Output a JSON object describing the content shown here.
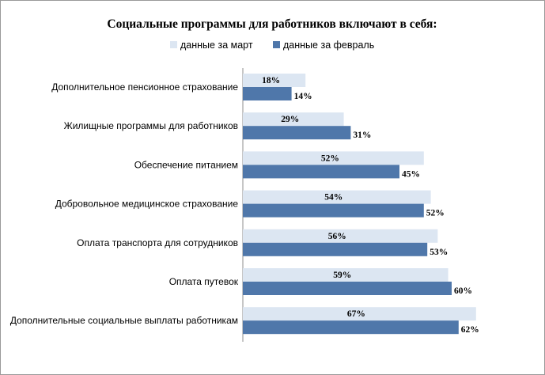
{
  "chart_data": {
    "type": "bar",
    "orientation": "horizontal",
    "title": "Социальные программы для работников включают в себя:",
    "xlabel": "",
    "ylabel": "",
    "xlim": [
      0,
      70
    ],
    "grid": false,
    "legend_position": "top",
    "categories": [
      "Дополнительное пенсионное страхование",
      "Жилищные программы для работников",
      "Обеспечение питанием",
      "Добровольное медицинское страхование",
      "Оплата транспорта для сотрудников",
      "Оплата путевок",
      "Дополнительные социальные выплаты работникам"
    ],
    "series": [
      {
        "name": "данные за март",
        "color": "#dce6f2",
        "values": [
          18,
          29,
          52,
          54,
          56,
          59,
          67
        ],
        "labels": [
          "18%",
          "29%",
          "52%",
          "54%",
          "56%",
          "59%",
          "67%"
        ]
      },
      {
        "name": "данные за февраль",
        "color": "#4f77aa",
        "values": [
          14,
          31,
          45,
          52,
          53,
          60,
          62
        ],
        "labels": [
          "14%",
          "31%",
          "45%",
          "52%",
          "53%",
          "60%",
          "62%"
        ]
      }
    ]
  }
}
